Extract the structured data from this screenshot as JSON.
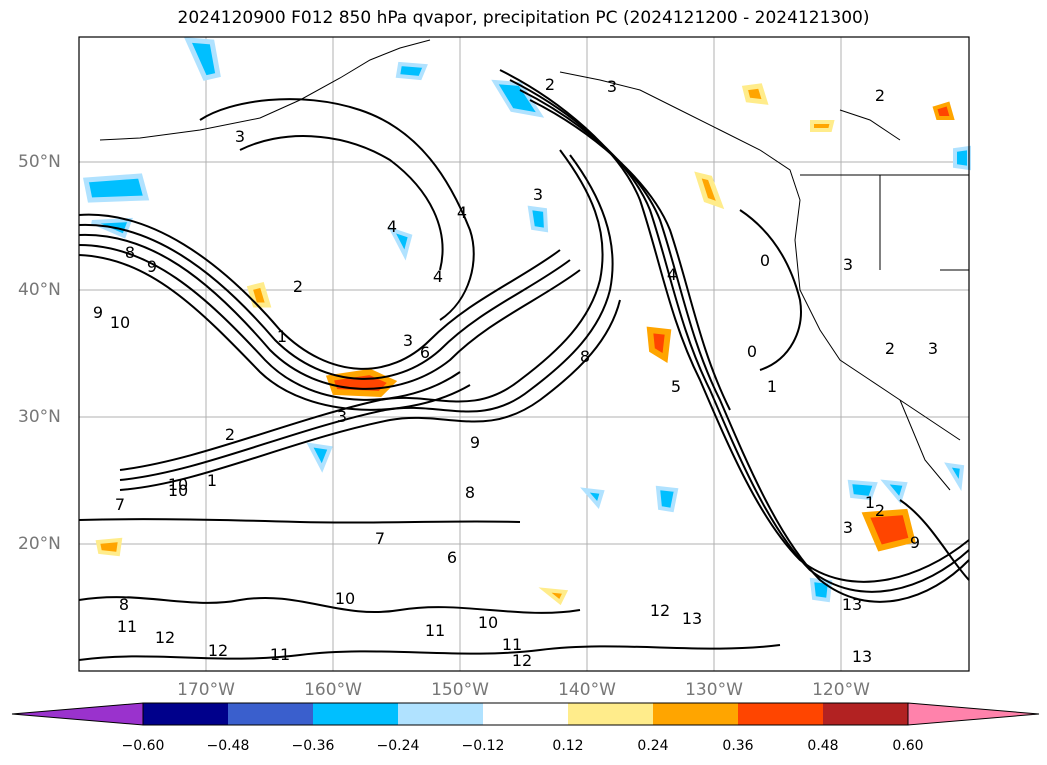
{
  "title": "2024120900 F012 850 hPa qvapor, precipitation PC (2024121200 - 2024121300)",
  "lat_labels": [
    "50°N",
    "40°N",
    "30°N",
    "20°N"
  ],
  "lon_labels": [
    "170°W",
    "160°W",
    "150°W",
    "140°W",
    "130°W",
    "120°W"
  ],
  "colorbar": {
    "ticks": [
      "−0.60",
      "−0.48",
      "−0.36",
      "−0.24",
      "−0.12",
      "0.12",
      "0.24",
      "0.36",
      "0.48",
      "0.60"
    ],
    "colors": [
      "#9a32cd",
      "#00008b",
      "#3a5fcd",
      "#00bfff",
      "#b0e2ff",
      "#ffffff",
      "#ffec8b",
      "#ffa500",
      "#ff4500",
      "#b22222",
      "#ff82ab"
    ]
  },
  "contour_labels": [
    "3",
    "2",
    "2",
    "3",
    "8",
    "9",
    "10",
    "9",
    "2",
    "1",
    "4",
    "4",
    "4",
    "3",
    "6",
    "3",
    "2",
    "1",
    "8",
    "7",
    "9",
    "10",
    "11",
    "11",
    "10",
    "12",
    "12",
    "11",
    "10",
    "11",
    "12",
    "12",
    "13",
    "13",
    "13",
    "9",
    "8",
    "6",
    "5",
    "4",
    "0",
    "0",
    "1",
    "2",
    "3",
    "3",
    "2",
    "1",
    "3",
    "8",
    "10",
    "3",
    "7"
  ],
  "gridlines": {
    "lon": [
      "170°W",
      "160°W",
      "150°W",
      "140°W",
      "130°W",
      "120°W"
    ],
    "lat": [
      "50°N",
      "40°N",
      "30°N",
      "20°N"
    ]
  }
}
